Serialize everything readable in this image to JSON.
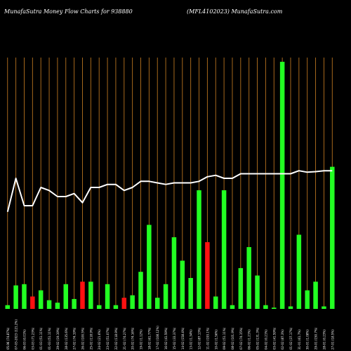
{
  "header": {
    "left_title": "MunafaSutra  Money Flow  Charts for 938880",
    "right_title": "(MFL4102023) MunafaSutra.com"
  },
  "colors": {
    "background": "#000000",
    "grid": "#b8731f",
    "up_bar": "#22ff22",
    "down_bar": "#ff1111",
    "line": "#ffffff",
    "text": "#ffffff"
  },
  "chart_data": {
    "type": "bar",
    "title": "MunafaSutra  Money Flow  Charts for 938880",
    "subtitle": "(MFL4102023) MunafaSutra.com",
    "grid": true,
    "categories": [
      "05.96 (74.87%)",
      "07-03-2023 (121.2%)",
      "06-03 (0.01%)",
      "03-03 (71.23%)",
      "01-03 (51.11%)",
      "01-03 (51.11%)",
      "29-02 (19.19%)",
      "28-02 (135.6%)",
      "27-02 (74.19%)",
      "26-02 (100.5%)",
      "25-02 (118.9%)",
      "24-02 (21.6%)",
      "23-02 (51.07%)",
      "22-02 (118.9%)",
      "21-02 (74.27%)",
      "20-02 (74.16%)",
      "19-02 (1.12%)",
      "18-02 (61.77%)",
      "17-02 (108.12%)",
      "16-02 (41.59%)",
      "15-02 (33.37%)",
      "14-02 (158.4%)",
      "13-02 (1.34%)",
      "12-02 (87.13%)",
      "11-02 (193.1%)",
      "10-02 (1.56%)",
      "09-02 (51.11%)",
      "08-02 (101.9%)",
      "07-02 (74.15%)",
      "06-02 (1.21%)",
      "05-02 (131.3%)",
      "04-02 (0.21%)",
      "03-02 (41.59%)",
      "02-02 (87.3%)",
      "01-02 (37.17%)",
      "31-01 (61.7%)",
      "30-01 (1.08%)",
      "29-01 (150.7%)",
      "28-01 (0.23%)",
      "27-01 (18.5%)"
    ],
    "bars": [
      {
        "value": 3,
        "direction": "up"
      },
      {
        "value": 19,
        "direction": "up"
      },
      {
        "value": 20,
        "direction": "up"
      },
      {
        "value": 10,
        "direction": "down"
      },
      {
        "value": 15,
        "direction": "up"
      },
      {
        "value": 7,
        "direction": "up"
      },
      {
        "value": 5,
        "direction": "up"
      },
      {
        "value": 20,
        "direction": "up"
      },
      {
        "value": 8,
        "direction": "up"
      },
      {
        "value": 22,
        "direction": "down"
      },
      {
        "value": 22,
        "direction": "up"
      },
      {
        "value": 3,
        "direction": "up"
      },
      {
        "value": 20,
        "direction": "up"
      },
      {
        "value": 3,
        "direction": "up"
      },
      {
        "value": 9,
        "direction": "down"
      },
      {
        "value": 11,
        "direction": "up"
      },
      {
        "value": 30,
        "direction": "up"
      },
      {
        "value": 68,
        "direction": "up"
      },
      {
        "value": 9,
        "direction": "up"
      },
      {
        "value": 20,
        "direction": "up"
      },
      {
        "value": 58,
        "direction": "up"
      },
      {
        "value": 39,
        "direction": "up"
      },
      {
        "value": 25,
        "direction": "up"
      },
      {
        "value": 96,
        "direction": "up"
      },
      {
        "value": 54,
        "direction": "down"
      },
      {
        "value": 10,
        "direction": "up"
      },
      {
        "value": 96,
        "direction": "up"
      },
      {
        "value": 3,
        "direction": "up"
      },
      {
        "value": 33,
        "direction": "up"
      },
      {
        "value": 50,
        "direction": "up"
      },
      {
        "value": 27,
        "direction": "up"
      },
      {
        "value": 3,
        "direction": "up"
      },
      {
        "value": 1,
        "direction": "up"
      },
      {
        "value": 200,
        "direction": "up"
      },
      {
        "value": 2,
        "direction": "up"
      },
      {
        "value": 60,
        "direction": "up"
      },
      {
        "value": 15,
        "direction": "up"
      },
      {
        "value": 22,
        "direction": "up"
      },
      {
        "value": 2,
        "direction": "up"
      },
      {
        "value": 115,
        "direction": "up"
      }
    ],
    "line_values": [
      105,
      116,
      107,
      107,
      113,
      112,
      110,
      110,
      111,
      108,
      113,
      113,
      114,
      114,
      112,
      113,
      115,
      115,
      114.5,
      114,
      114.5,
      114.5,
      114.5,
      115,
      116.5,
      117,
      116,
      116,
      117.5,
      117.5,
      117.5,
      117.5,
      117.5,
      117.5,
      117.5,
      118.5,
      118,
      118.2,
      118.5,
      118.5
    ],
    "bar_ylim": [
      0,
      200
    ],
    "line_ylim": [
      80,
      140
    ]
  }
}
